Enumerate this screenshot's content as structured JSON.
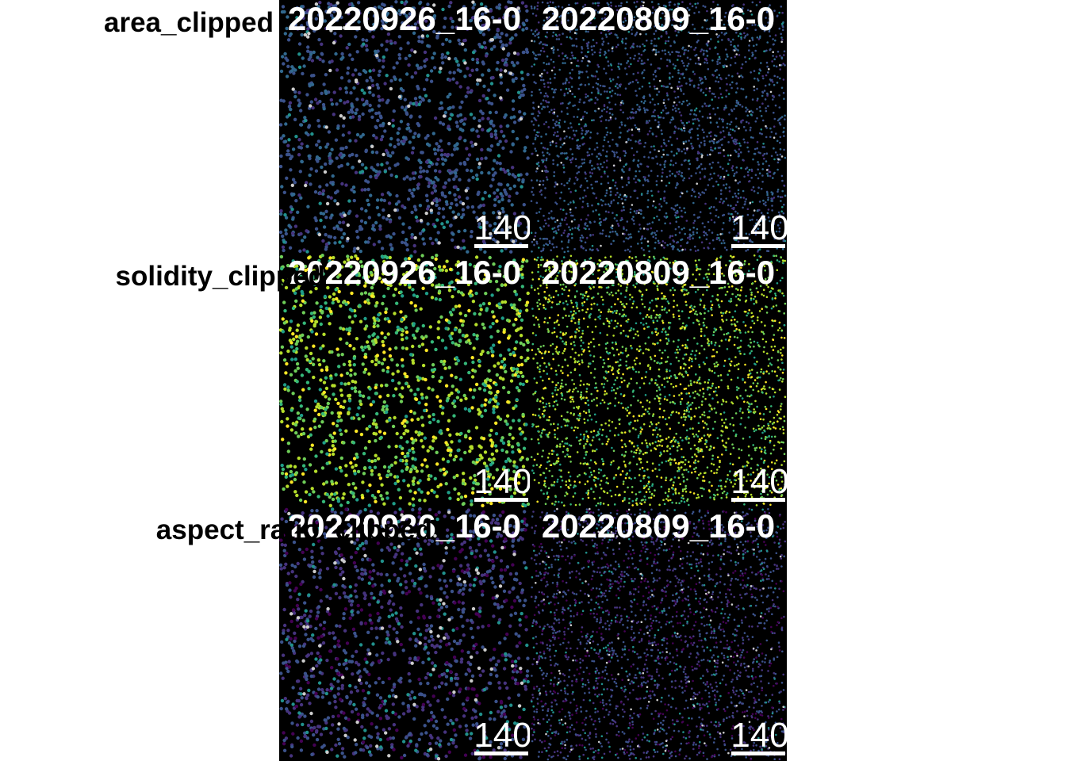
{
  "rows": [
    {
      "label": "area_clipped",
      "panels": [
        {
          "title": "20220926_16-0",
          "scale": 140
        },
        {
          "title": "20220809_16-0",
          "scale": 140
        }
      ]
    },
    {
      "label": "solidity_clipped",
      "panels": [
        {
          "title": "20220926_16-0",
          "scale": 140
        },
        {
          "title": "20220809_16-0",
          "scale": 140
        }
      ]
    },
    {
      "label": "aspect_ratio_clipped",
      "panels": [
        {
          "title": "20220926_16-0",
          "scale": 140
        },
        {
          "title": "20220809_16-0",
          "scale": 140
        }
      ]
    }
  ]
}
